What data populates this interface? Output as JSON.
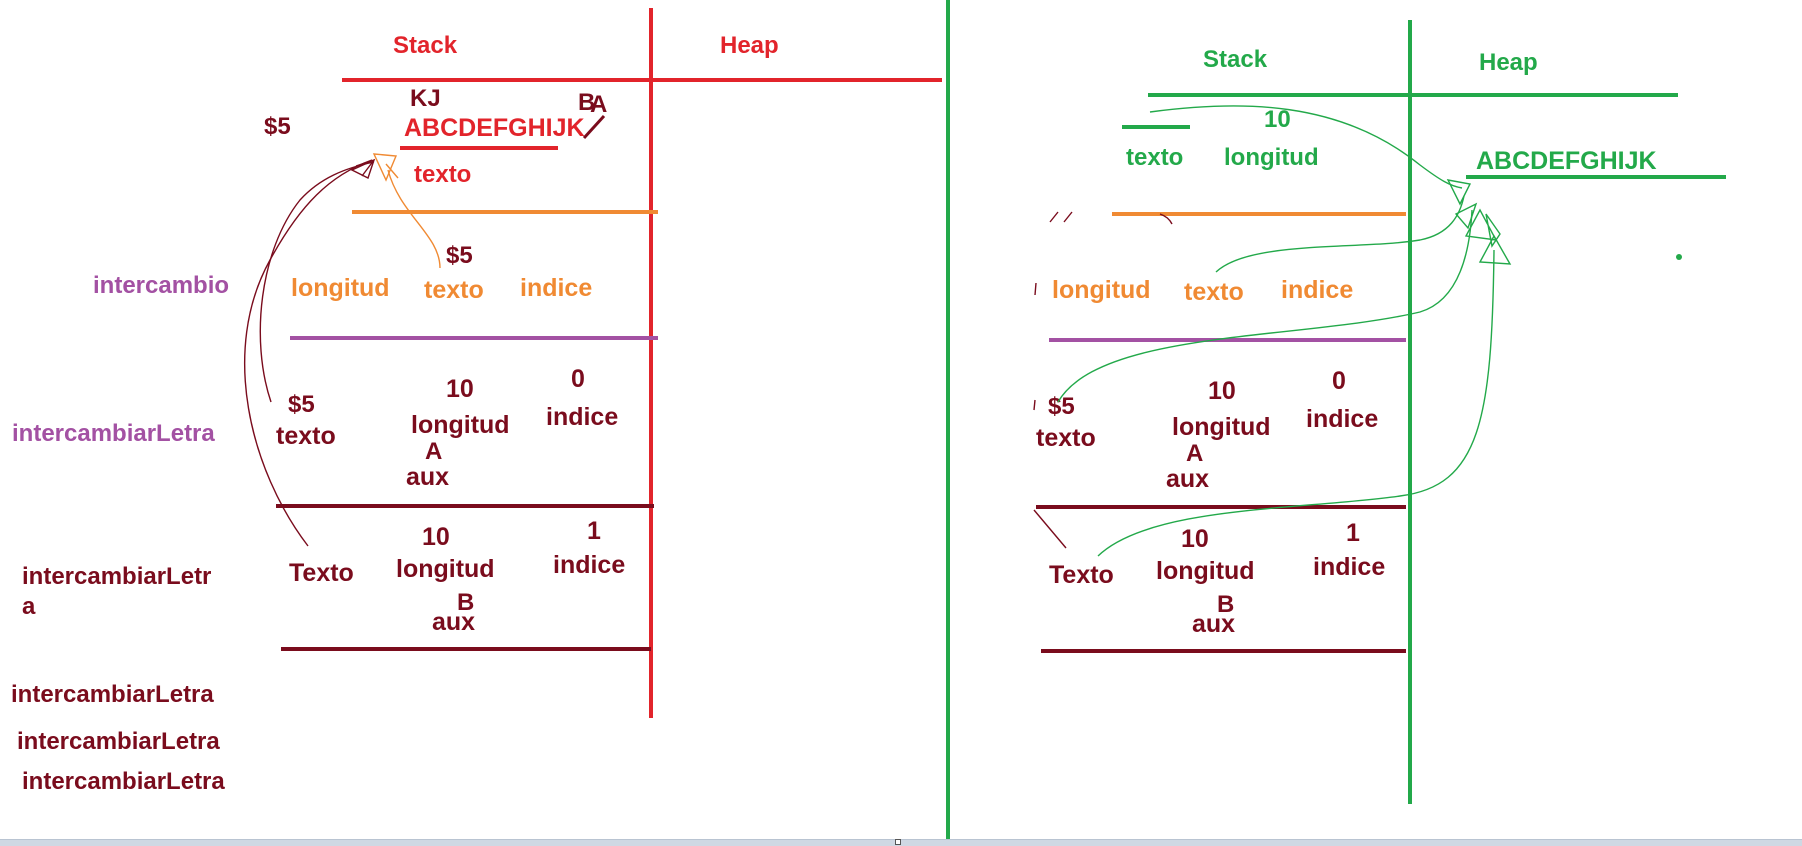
{
  "colors": {
    "red": "#e2242b",
    "dark": "#7a0c1d",
    "orange": "#f08a33",
    "purple": "#a351a3",
    "green": "#23a94a"
  },
  "left": {
    "stack_title": "Stack",
    "heap_title": "Heap",
    "heap_letters_over_1": "KJ",
    "heap_letters_over_2": "B",
    "heap_letters_over_3": "A",
    "heap_string": "ABCDEFGHIJK",
    "ref_label": "$5",
    "main_frame": {
      "var": "texto"
    },
    "intercambio": {
      "label": "intercambio",
      "ref": "$5",
      "vars": [
        "longitud",
        "texto",
        "indice"
      ]
    },
    "frame1": {
      "label": "intercambiarLetra",
      "ref": "$5",
      "texto": "texto",
      "longitud_value": "10",
      "longitud": "longitud",
      "indice_value": "0",
      "indice": "indice",
      "aux_value": "A",
      "aux": "aux"
    },
    "frame2": {
      "label_line1": "intercambiarLetr",
      "label_line2": "a",
      "texto": "Texto",
      "longitud_value": "10",
      "longitud": "longitud",
      "indice_value": "1",
      "indice": "indice",
      "aux_value": "B",
      "aux": "aux"
    },
    "pending_calls": [
      "intercambiarLetra",
      "intercambiarLetra",
      "intercambiarLetra"
    ]
  },
  "right": {
    "stack_title": "Stack",
    "heap_title": "Heap",
    "heap_string": "ABCDEFGHIJK",
    "main_frame": {
      "texto": "texto",
      "longitud_value": "10",
      "longitud": "longitud"
    },
    "intercambio": {
      "vars": [
        "longitud",
        "texto",
        "indice"
      ]
    },
    "frame1": {
      "ref": "$5",
      "texto": "texto",
      "longitud_value": "10",
      "longitud": "longitud",
      "indice_value": "0",
      "indice": "indice",
      "aux_value": "A",
      "aux": "aux"
    },
    "frame2": {
      "texto": "Texto",
      "longitud_value": "10",
      "longitud": "longitud",
      "indice_value": "1",
      "indice": "indice",
      "aux_value": "B",
      "aux": "aux"
    }
  }
}
